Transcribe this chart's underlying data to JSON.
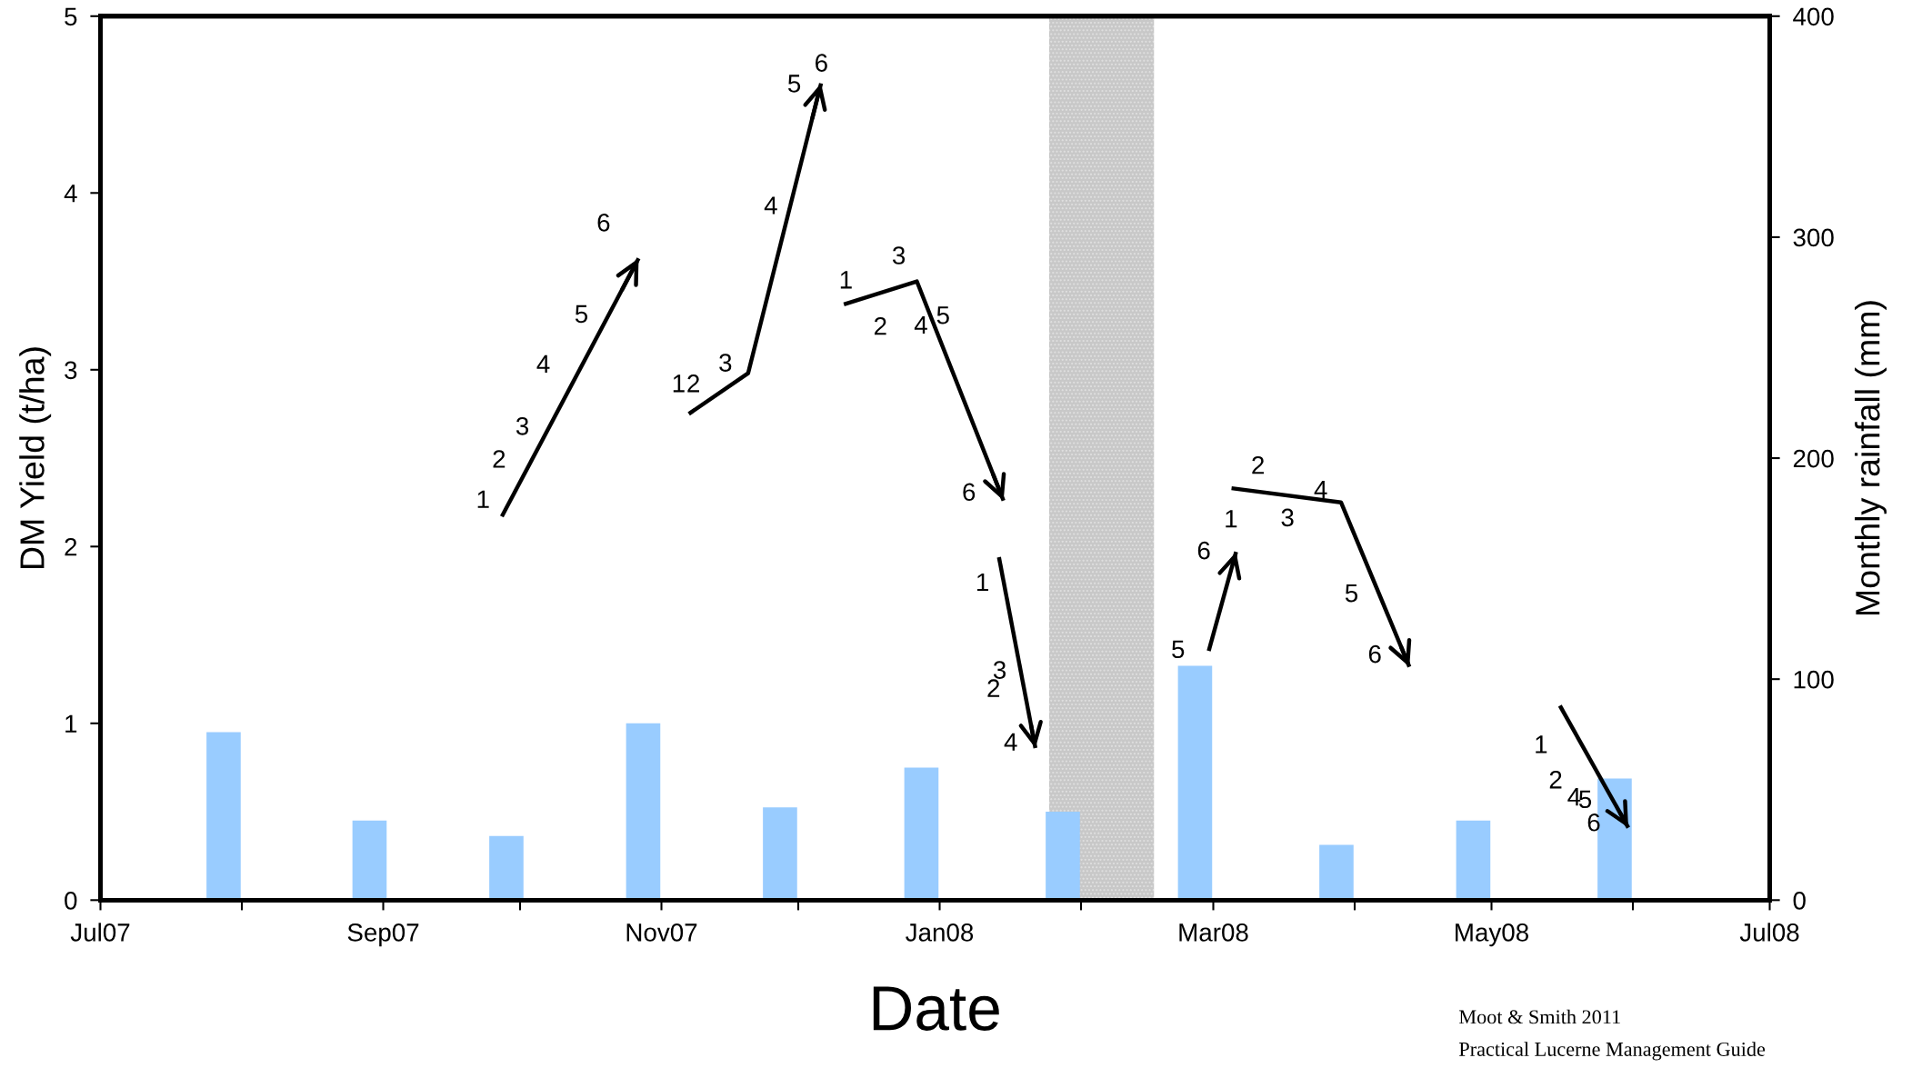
{
  "chart_data": {
    "type": "line",
    "xlabel": "Date",
    "ylabel": "DM Yield (t/ha)",
    "y2label": "Monthly rainfall (mm)",
    "xlim": [
      "2007-07-01",
      "2008-07-01"
    ],
    "xticks": [
      {
        "value": "2007-07-01",
        "label": "Jul07"
      },
      {
        "value": "2007-08-01",
        "label": null
      },
      {
        "value": "2007-09-01",
        "label": "Sep07"
      },
      {
        "value": "2007-10-01",
        "label": null
      },
      {
        "value": "2007-11-01",
        "label": "Nov07"
      },
      {
        "value": "2007-12-01",
        "label": null
      },
      {
        "value": "2008-01-01",
        "label": "Jan08"
      },
      {
        "value": "2008-02-01",
        "label": null
      },
      {
        "value": "2008-03-01",
        "label": "Mar08"
      },
      {
        "value": "2008-04-01",
        "label": null
      },
      {
        "value": "2008-05-01",
        "label": "May08"
      },
      {
        "value": "2008-06-01",
        "label": null
      },
      {
        "value": "2008-07-01",
        "label": "Jul08"
      }
    ],
    "ylim": [
      0,
      5
    ],
    "yticks": [
      0,
      1,
      2,
      3,
      4,
      5
    ],
    "y2lim": [
      0,
      400
    ],
    "y2ticks": [
      0,
      100,
      200,
      300,
      400
    ],
    "marker": "none",
    "line_style": "solid",
    "series": [
      {
        "type": "bar",
        "axis": "y2",
        "color": "#99ccff",
        "x": [
          "2007-07-28",
          "2007-08-29",
          "2007-09-28",
          "2007-10-28",
          "2007-11-27",
          "2007-12-28",
          "2008-01-28",
          "2008-02-26",
          "2008-03-28",
          "2008-04-27",
          "2008-05-28"
        ],
        "values": [
          76,
          36,
          29,
          80,
          42,
          60,
          40,
          106,
          25,
          36,
          55
        ]
      },
      {
        "color": "#000000",
        "x": [
          "2007-09-27",
          "2007-10-27"
        ],
        "values": [
          2.17,
          3.63
        ]
      },
      {
        "color": "#000000",
        "x": [
          "2007-11-07",
          "2007-11-20",
          "2007-12-06"
        ],
        "values": [
          2.75,
          2.98,
          4.62
        ]
      },
      {
        "color": "#000000",
        "x": [
          "2007-12-11",
          "2007-12-27",
          "2008-01-15"
        ],
        "values": [
          3.37,
          3.5,
          2.26
        ]
      },
      {
        "color": "#000000",
        "x": [
          "2008-01-14",
          "2008-01-22"
        ],
        "values": [
          1.94,
          0.86
        ]
      },
      {
        "color": "#000000",
        "x": [
          "2008-02-29",
          "2008-03-06"
        ],
        "values": [
          1.41,
          1.97
        ]
      },
      {
        "color": "#000000",
        "x": [
          "2008-03-05",
          "2008-03-29",
          "2008-04-13"
        ],
        "values": [
          2.33,
          2.25,
          1.32
        ]
      },
      {
        "color": "#000000",
        "x": [
          "2008-05-16",
          "2008-05-31"
        ],
        "values": [
          1.1,
          0.41
        ]
      }
    ],
    "bands": [
      {
        "axis": "x",
        "from": "2008-01-25",
        "to": "2008-02-17",
        "color": "#c8c8c8"
      }
    ],
    "annotations": [
      "1",
      "2",
      "3",
      "4",
      "5",
      "6",
      "1",
      "2",
      "3",
      "4",
      "5",
      "6",
      "1",
      "2",
      "3",
      "4",
      "5",
      "6",
      "1",
      "2",
      "3",
      "4",
      "5",
      "6",
      "1",
      "2",
      "3",
      "4",
      "5",
      "6",
      "1",
      "2",
      "4",
      "5",
      "6",
      "Moot & Smith 2011",
      "Practical Lucerne Management Guide"
    ]
  }
}
